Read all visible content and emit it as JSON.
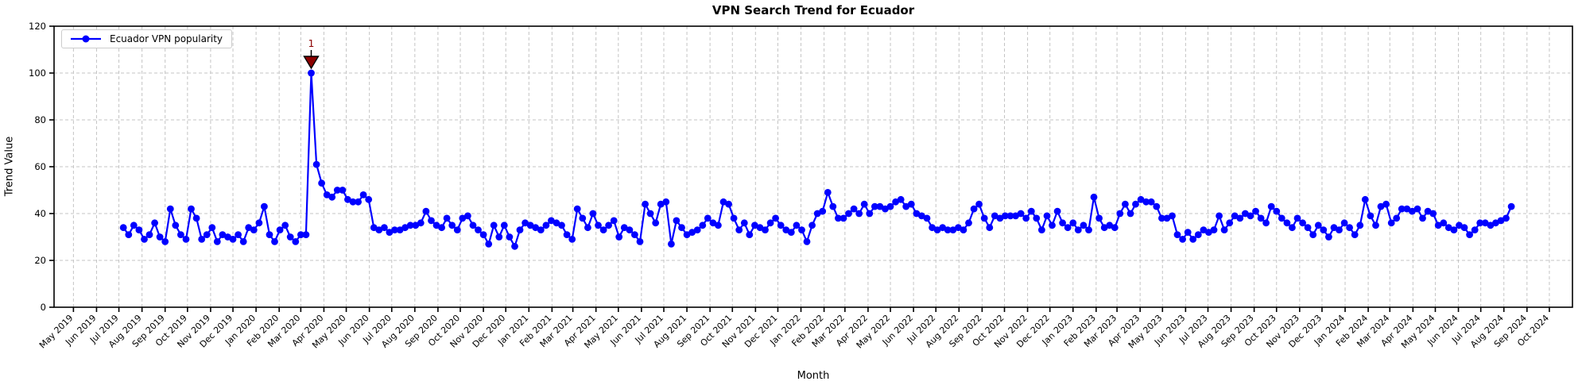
{
  "chart_data": {
    "type": "line",
    "title": "VPN Search Trend for Ecuador",
    "xlabel": "Month",
    "ylabel": "Trend Value",
    "grid": true,
    "legend": {
      "position": "upper-left",
      "entries": [
        {
          "label": "Ecuador VPN popularity",
          "color": "#0000ff",
          "marker": "circle"
        }
      ]
    },
    "ylim": [
      0,
      120
    ],
    "yticks": [
      0,
      20,
      40,
      60,
      80,
      100,
      120
    ],
    "x_tick_labels": [
      "May 2019",
      "Jun 2019",
      "Jul 2019",
      "Aug 2019",
      "Sep 2019",
      "Oct 2019",
      "Nov 2019",
      "Dec 2019",
      "Jan 2020",
      "Feb 2020",
      "Mar 2020",
      "Apr 2020",
      "May 2020",
      "Jun 2020",
      "Jul 2020",
      "Aug 2020",
      "Sep 2020",
      "Oct 2020",
      "Nov 2020",
      "Dec 2020",
      "Jan 2021",
      "Feb 2021",
      "Mar 2021",
      "Apr 2021",
      "May 2021",
      "Jun 2021",
      "Jul 2021",
      "Aug 2021",
      "Sep 2021",
      "Oct 2021",
      "Nov 2021",
      "Dec 2021",
      "Jan 2022",
      "Feb 2022",
      "Mar 2022",
      "Apr 2022",
      "May 2022",
      "Jun 2022",
      "Jul 2022",
      "Aug 2022",
      "Sep 2022",
      "Oct 2022",
      "Nov 2022",
      "Dec 2022",
      "Jan 2023",
      "Feb 2023",
      "Mar 2023",
      "Apr 2023",
      "May 2023",
      "Jun 2023",
      "Jul 2023",
      "Aug 2023",
      "Sep 2023",
      "Oct 2023",
      "Nov 2023",
      "Dec 2023",
      "Jan 2024",
      "Feb 2024",
      "Mar 2024",
      "Apr 2024",
      "May 2024",
      "Jun 2024",
      "Jul 2024",
      "Aug 2024",
      "Sep 2024",
      "Oct 2024"
    ],
    "series": [
      {
        "name": "Ecuador VPN popularity",
        "color": "#0000ff",
        "start_date": "2019-07-07",
        "frequency_days": 7,
        "values": [
          34,
          31,
          35,
          33,
          29,
          31,
          36,
          30,
          28,
          42,
          35,
          31,
          29,
          42,
          38,
          29,
          31,
          34,
          28,
          31,
          30,
          29,
          31,
          28,
          34,
          33,
          36,
          43,
          31,
          28,
          33,
          35,
          30,
          28,
          31,
          31,
          100,
          61,
          53,
          48,
          47,
          50,
          50,
          46,
          45,
          45,
          48,
          46,
          34,
          33,
          34,
          32,
          33,
          33,
          34,
          35,
          35,
          36,
          41,
          37,
          35,
          34,
          38,
          35,
          33,
          38,
          39,
          35,
          33,
          31,
          27,
          35,
          30,
          35,
          30,
          26,
          33,
          36,
          35,
          34,
          33,
          35,
          37,
          36,
          35,
          31,
          29,
          42,
          38,
          34,
          40,
          35,
          33,
          35,
          37,
          30,
          34,
          33,
          31,
          28,
          44,
          40,
          36,
          44,
          45,
          27,
          37,
          34,
          31,
          32,
          33,
          35,
          38,
          36,
          35,
          45,
          44,
          38,
          33,
          36,
          31,
          35,
          34,
          33,
          36,
          38,
          35,
          33,
          32,
          35,
          33,
          28,
          35,
          40,
          41,
          49,
          43,
          38,
          38,
          40,
          42,
          40,
          44,
          40,
          43,
          43,
          42,
          43,
          45,
          46,
          43,
          44,
          40,
          39,
          38,
          34,
          33,
          34,
          33,
          33,
          34,
          33,
          36,
          42,
          44,
          38,
          34,
          39,
          38,
          39,
          39,
          39,
          40,
          38,
          41,
          38,
          33,
          39,
          35,
          41,
          36,
          34,
          36,
          33,
          35,
          33,
          47,
          38,
          34,
          35,
          34,
          40,
          44,
          40,
          44,
          46,
          45,
          45,
          43,
          38,
          38,
          39,
          31,
          29,
          32,
          29,
          31,
          33,
          32,
          33,
          39,
          33,
          36,
          39,
          38,
          40,
          39,
          41,
          38,
          36,
          43,
          41,
          38,
          36,
          34,
          38,
          36,
          34,
          31,
          35,
          33,
          30,
          34,
          33,
          36,
          34,
          31,
          35,
          46,
          39,
          35,
          43,
          44,
          36,
          38,
          42,
          42,
          41,
          42,
          38,
          41,
          40,
          35,
          36,
          34,
          33,
          35,
          34,
          31,
          33,
          36,
          36,
          35,
          36,
          37,
          38,
          43
        ]
      }
    ],
    "annotations": [
      {
        "text": "1",
        "color": "#8b0000",
        "marker": "down-triangle",
        "value_index": 36,
        "value": 100
      }
    ],
    "axis": {
      "x_domain_start": "2019-04-05",
      "x_domain_end": "2024-11-01",
      "grid_color": "#c4c4c4",
      "spine_color": "#000000"
    }
  }
}
